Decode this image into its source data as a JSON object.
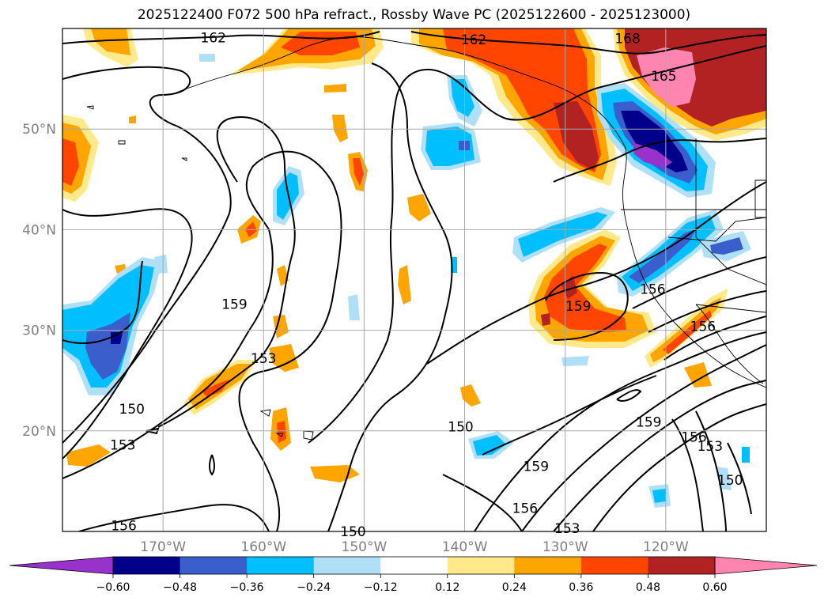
{
  "title": "2025122400 F072 500 hPa refract., Rossby Wave PC (2025122600 - 2025123000)",
  "map": {
    "lon_range": [
      -180,
      -110
    ],
    "lat_range": [
      10,
      60
    ],
    "lat_ticks": [
      {
        "value": 50,
        "label": "50°N"
      },
      {
        "value": 40,
        "label": "40°N"
      },
      {
        "value": 30,
        "label": "30°N"
      },
      {
        "value": 20,
        "label": "20°N"
      }
    ],
    "lon_ticks": [
      {
        "value": -170,
        "label": "170°W"
      },
      {
        "value": -160,
        "label": "160°W"
      },
      {
        "value": -150,
        "label": "150°W"
      },
      {
        "value": -140,
        "label": "140°W"
      },
      {
        "value": -130,
        "label": "130°W"
      },
      {
        "value": -120,
        "label": "120°W"
      }
    ],
    "grid": true
  },
  "contour_labels": [
    {
      "text": "162",
      "lon": -165.0,
      "lat": 59.1
    },
    {
      "text": "162",
      "lon": -139.1,
      "lat": 58.9
    },
    {
      "text": "168",
      "lon": -123.8,
      "lat": 59.0
    },
    {
      "text": "165",
      "lon": -120.2,
      "lat": 55.3
    },
    {
      "text": "159",
      "lon": -162.9,
      "lat": 32.6
    },
    {
      "text": "153",
      "lon": -160.0,
      "lat": 27.2
    },
    {
      "text": "150",
      "lon": -173.1,
      "lat": 22.2
    },
    {
      "text": "153",
      "lon": -174.0,
      "lat": 18.6
    },
    {
      "text": "150",
      "lon": -140.4,
      "lat": 20.4
    },
    {
      "text": "159",
      "lon": -132.9,
      "lat": 16.5
    },
    {
      "text": "156",
      "lon": -134.0,
      "lat": 12.3
    },
    {
      "text": "153",
      "lon": -129.8,
      "lat": 10.3
    },
    {
      "text": "150",
      "lon": -151.1,
      "lat": 10.0
    },
    {
      "text": "156",
      "lon": -173.9,
      "lat": 10.6
    },
    {
      "text": "159",
      "lon": -128.7,
      "lat": 32.4
    },
    {
      "text": "156",
      "lon": -121.3,
      "lat": 34.1
    },
    {
      "text": "156",
      "lon": -116.3,
      "lat": 30.4
    },
    {
      "text": "159",
      "lon": -121.7,
      "lat": 20.9
    },
    {
      "text": "156",
      "lon": -117.2,
      "lat": 19.4
    },
    {
      "text": "153",
      "lon": -115.6,
      "lat": 18.5
    },
    {
      "text": "150",
      "lon": -113.6,
      "lat": 15.1
    }
  ],
  "colorbar": {
    "ticks": [
      "−0.60",
      "−0.48",
      "−0.36",
      "−0.24",
      "−0.12",
      "0.12",
      "0.24",
      "0.36",
      "0.48",
      "0.60"
    ],
    "colors": [
      "#9932cc",
      "#00008b",
      "#3a5fcd",
      "#00bfff",
      "#b0e0f8",
      "#ffffff",
      "#ffe98a",
      "#ffa500",
      "#ff4500",
      "#b22222",
      "#ff85b0"
    ]
  },
  "colors": {
    "purple": "#9932cc",
    "navy": "#00008b",
    "royal": "#3a5fcd",
    "sky": "#00bfff",
    "pale_blue": "#b0e0f8",
    "pale_yellow": "#ffe98a",
    "orange": "#ffa500",
    "red_orange": "#ff4500",
    "dark_red": "#b22222",
    "pink": "#ff85b0"
  }
}
